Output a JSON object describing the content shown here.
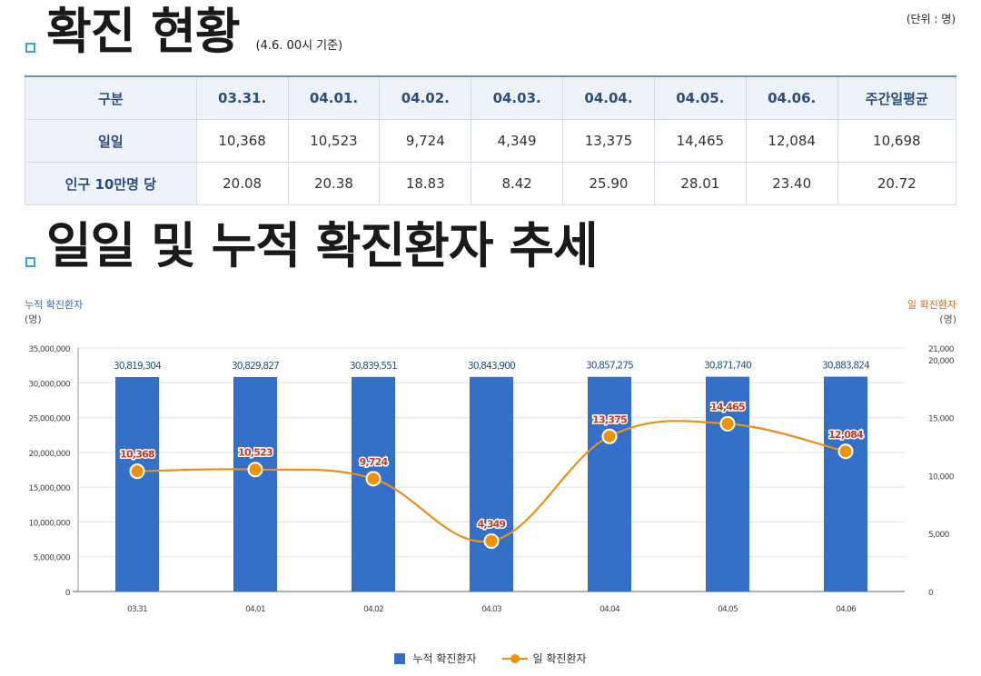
{
  "section1": {
    "title": "확진 현황",
    "subtitle": "(4.6. 00시 기준)",
    "unit": "(단위 : 명)"
  },
  "table": {
    "headers": [
      "구분",
      "03.31.",
      "04.01.",
      "04.02.",
      "04.03.",
      "04.04.",
      "04.05.",
      "04.06.",
      "주간일평균"
    ],
    "rows": [
      {
        "label": "일일",
        "values": [
          "10,368",
          "10,523",
          "9,724",
          "4,349",
          "13,375",
          "14,465",
          "12,084",
          "10,698"
        ]
      },
      {
        "label": "인구 10만명 당",
        "values": [
          "20.08",
          "20.38",
          "18.83",
          "8.42",
          "25.90",
          "28.01",
          "23.40",
          "20.72"
        ]
      }
    ]
  },
  "section2": {
    "title": "일일 및 누적 확진환자 추세"
  },
  "chart_labels": {
    "left_axis_title": "누적 확진환자",
    "left_axis_unit": "(명)",
    "right_axis_title": "일 확진환자",
    "right_axis_unit": "(명)"
  },
  "colors": {
    "bar": "#3470c8",
    "line": "#e9901a",
    "point": "#f39200",
    "line_label": "#c0392b",
    "bar_label": "#2a4f7d"
  },
  "chart_data": {
    "type": "bar",
    "categories": [
      "03.31",
      "04.01",
      "04.02",
      "04.03",
      "04.04",
      "04.05",
      "04.06"
    ],
    "series": [
      {
        "name": "누적 확진환자",
        "type": "bar",
        "axis": "left",
        "values": [
          30819304,
          30829827,
          30839551,
          30843900,
          30857275,
          30871740,
          30883824
        ],
        "labels": [
          "30,819,304",
          "30,829,827",
          "30,839,551",
          "30,843,900",
          "30,857,275",
          "30,871,740",
          "30,883,824"
        ]
      },
      {
        "name": "일 확진환자",
        "type": "line",
        "axis": "right",
        "values": [
          10368,
          10523,
          9724,
          4349,
          13375,
          14465,
          12084
        ],
        "labels": [
          "10,368",
          "10,523",
          "9,724",
          "4,349",
          "13,375",
          "14,465",
          "12,084"
        ]
      }
    ],
    "left_axis": {
      "range": [
        0,
        35000000
      ],
      "ticks": [
        0,
        5000000,
        10000000,
        15000000,
        20000000,
        25000000,
        30000000,
        35000000
      ],
      "tick_labels": [
        "0",
        "5,000,000",
        "10,000,000",
        "15,000,000",
        "20,000,000",
        "25,000,000",
        "30,000,000",
        "35,000,000"
      ]
    },
    "right_axis": {
      "range": [
        0,
        21000
      ],
      "ticks": [
        0,
        5000,
        10000,
        15000,
        20000,
        21000
      ],
      "tick_labels": [
        "0",
        "5,000",
        "10,000",
        "15,000",
        "20,000",
        "21,000"
      ]
    },
    "grid": true,
    "legend_position": "bottom"
  }
}
